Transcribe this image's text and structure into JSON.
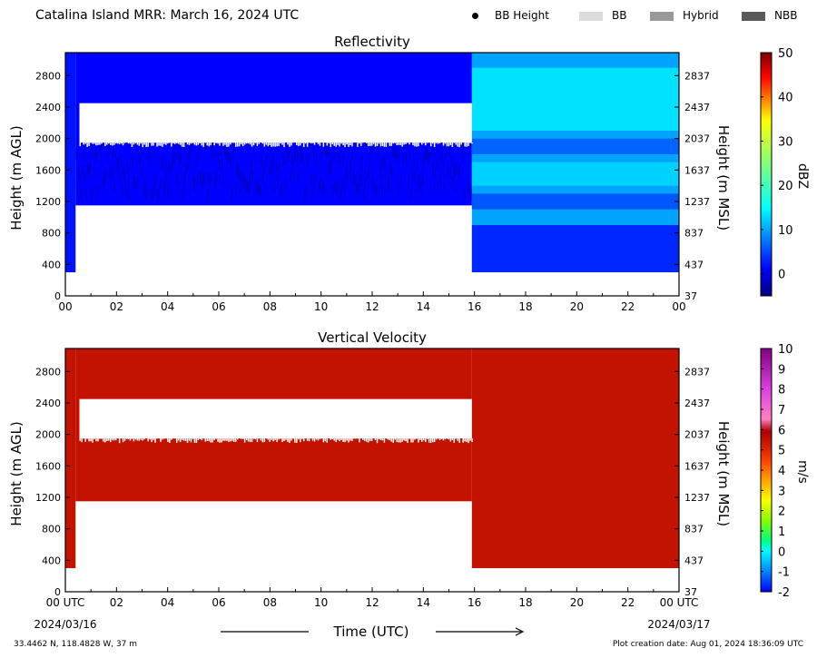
{
  "header": {
    "title": "Catalina Island MRR:  March 16, 2024 UTC",
    "legend": [
      {
        "label": "BB Height",
        "marker": "dot",
        "color": "#000000"
      },
      {
        "label": "BB",
        "marker": "box",
        "color": "#dcdcdc"
      },
      {
        "label": "Hybrid",
        "marker": "box",
        "color": "#999999"
      },
      {
        "label": "NBB",
        "marker": "box",
        "color": "#595959"
      }
    ]
  },
  "chart_data": [
    {
      "type": "heatmap",
      "title": "Reflectivity",
      "xlabel": "",
      "ylabel": "Height (m AGL)",
      "ylabel_right": "Height (m MSL)",
      "x_ticks": [
        "00",
        "02",
        "04",
        "06",
        "08",
        "10",
        "12",
        "14",
        "16",
        "18",
        "20",
        "22",
        "00"
      ],
      "y_ticks": [
        0,
        400,
        800,
        1200,
        1600,
        2000,
        2400,
        2800
      ],
      "y_ticks_right": [
        "37",
        "437",
        "837",
        "1237",
        "1637",
        "2037",
        "2437",
        "2837"
      ],
      "xlim": [
        0,
        24
      ],
      "ylim": [
        0,
        3000
      ],
      "colorbar": {
        "label": "dBZ",
        "ticks": [
          0,
          10,
          20,
          30,
          40,
          50
        ],
        "min": -5,
        "max": 50,
        "colormap": "jet"
      },
      "echo_regions": [
        {
          "t_start": 0,
          "t_end": 0.4,
          "bottom_m": 300,
          "top_m": 3000,
          "dbz": 2
        },
        {
          "t_start": 0.4,
          "t_end": 15.9,
          "bottom_m": 1150,
          "top_m": 3000,
          "dbz": 1
        },
        {
          "t_start": 15.9,
          "t_end": 24,
          "bottom_m": 300,
          "top_m": 3000,
          "dbz": 10
        }
      ],
      "gaps": [
        {
          "t_start": 0.55,
          "t_end": 15.9,
          "bottom_m": 1950,
          "top_m": 2450
        }
      ]
    },
    {
      "type": "heatmap",
      "title": "Vertical Velocity",
      "xlabel": "Time (UTC)",
      "ylabel": "Height (m AGL)",
      "ylabel_right": "Height (m MSL)",
      "x_ticks": [
        "00 UTC",
        "02",
        "04",
        "06",
        "08",
        "10",
        "12",
        "14",
        "16",
        "18",
        "20",
        "22",
        "00 UTC"
      ],
      "x_date_labels": [
        "2024/03/16",
        "2024/03/17"
      ],
      "y_ticks": [
        0,
        400,
        800,
        1200,
        1600,
        2000,
        2400,
        2800
      ],
      "y_ticks_right": [
        "37",
        "437",
        "837",
        "1237",
        "1637",
        "2037",
        "2437",
        "2837"
      ],
      "xlim": [
        0,
        24
      ],
      "ylim": [
        0,
        3000
      ],
      "colorbar": {
        "label": "m/s",
        "ticks": [
          -2,
          -1,
          0,
          1,
          2,
          3,
          4,
          5,
          6,
          7,
          8,
          9,
          10
        ],
        "min": -2,
        "max": 10
      },
      "echo_regions": [
        {
          "t_start": 0,
          "t_end": 0.4,
          "bottom_m": 300,
          "top_m": 3000,
          "velocity": 6
        },
        {
          "t_start": 0.4,
          "t_end": 15.9,
          "bottom_m": 1150,
          "top_m": 3000,
          "velocity": 6
        },
        {
          "t_start": 15.9,
          "t_end": 24,
          "bottom_m": 300,
          "top_m": 3000,
          "velocity": 6
        }
      ],
      "gaps": [
        {
          "t_start": 0.55,
          "t_end": 15.9,
          "bottom_m": 1950,
          "top_m": 2450
        }
      ]
    }
  ],
  "footer": {
    "location": "33.4462 N, 118.4828 W, 37 m",
    "creation": "Plot creation date: Aug 01, 2024 18:36:09 UTC"
  },
  "colors": {
    "velocity_fill": "#c41200",
    "frame": "#000000"
  }
}
